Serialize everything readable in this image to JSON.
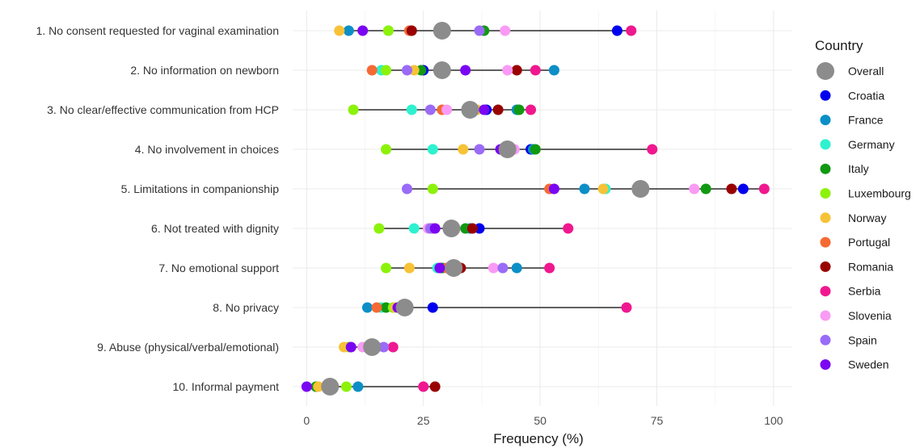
{
  "chart_data": {
    "type": "scatter",
    "xlabel": "Frequency (%)",
    "xlim": [
      -3,
      104
    ],
    "xticks": [
      0,
      25,
      50,
      75,
      100
    ],
    "grid": true,
    "legend": {
      "title": "Country",
      "placement": "right"
    },
    "categories": [
      "1. No consent requested for vaginal examination",
      "2. No information on newborn",
      "3. No clear/effective communication from HCP",
      "4. No involvement in choices",
      "5. Limitations in companionship",
      "6. Not treated with dignity",
      "7. No emotional support",
      "8. No privacy",
      "9. Abuse (physical/verbal/emotional)",
      "10. Informal payment"
    ],
    "series": [
      {
        "name": "Overall",
        "color": "#8c8c8c",
        "values": [
          29,
          29,
          35,
          43,
          71.5,
          31,
          31.5,
          21,
          14,
          5
        ]
      },
      {
        "name": "Croatia",
        "color": "#0000ee",
        "values": [
          66.5,
          25,
          38.5,
          48,
          93.5,
          37,
          29,
          27,
          15,
          5
        ]
      },
      {
        "name": "France",
        "color": "#0b8fc6",
        "values": [
          9,
          53,
          45,
          48.5,
          59.5,
          35,
          45,
          13,
          14.5,
          11
        ]
      },
      {
        "name": "Germany",
        "color": "#2ef2cf",
        "values": [
          17.5,
          16,
          22.5,
          27,
          64,
          23,
          28,
          16,
          13,
          5.5
        ]
      },
      {
        "name": "Italy",
        "color": "#119911",
        "values": [
          38,
          24.5,
          45.5,
          49,
          85.5,
          34,
          29,
          17,
          15,
          2
        ]
      },
      {
        "name": "Luxembourg",
        "color": "#8cf20a",
        "values": [
          17.5,
          17,
          10,
          17,
          27,
          15.5,
          17,
          18.5,
          9,
          8.5
        ]
      },
      {
        "name": "Norway",
        "color": "#f7c236",
        "values": [
          7,
          23,
          36.5,
          33.5,
          63.5,
          31.5,
          22,
          19,
          8,
          2.5
        ]
      },
      {
        "name": "Portugal",
        "color": "#f56a34",
        "values": [
          22,
          14,
          29,
          43,
          52,
          27,
          30,
          15,
          15,
          5
        ]
      },
      {
        "name": "Romania",
        "color": "#990000",
        "values": [
          22.5,
          45,
          41,
          44,
          91,
          35.5,
          33,
          20,
          15,
          27.5
        ]
      },
      {
        "name": "Serbia",
        "color": "#f0188f",
        "values": [
          69.5,
          49,
          48,
          74,
          98,
          56,
          52,
          68.5,
          18.5,
          25
        ]
      },
      {
        "name": "Slovenia",
        "color": "#f99bf5",
        "values": [
          42.5,
          43,
          30,
          44.5,
          83,
          26,
          40,
          21,
          12,
          5.5
        ]
      },
      {
        "name": "Spain",
        "color": "#9a6bf7",
        "values": [
          37,
          21.5,
          26.5,
          37,
          21.5,
          26.5,
          42,
          21,
          16.5,
          5
        ]
      },
      {
        "name": "Sweden",
        "color": "#7a05f2",
        "values": [
          12,
          34,
          38,
          41.5,
          53,
          27.5,
          28.5,
          19.5,
          9.5,
          0
        ]
      }
    ]
  }
}
